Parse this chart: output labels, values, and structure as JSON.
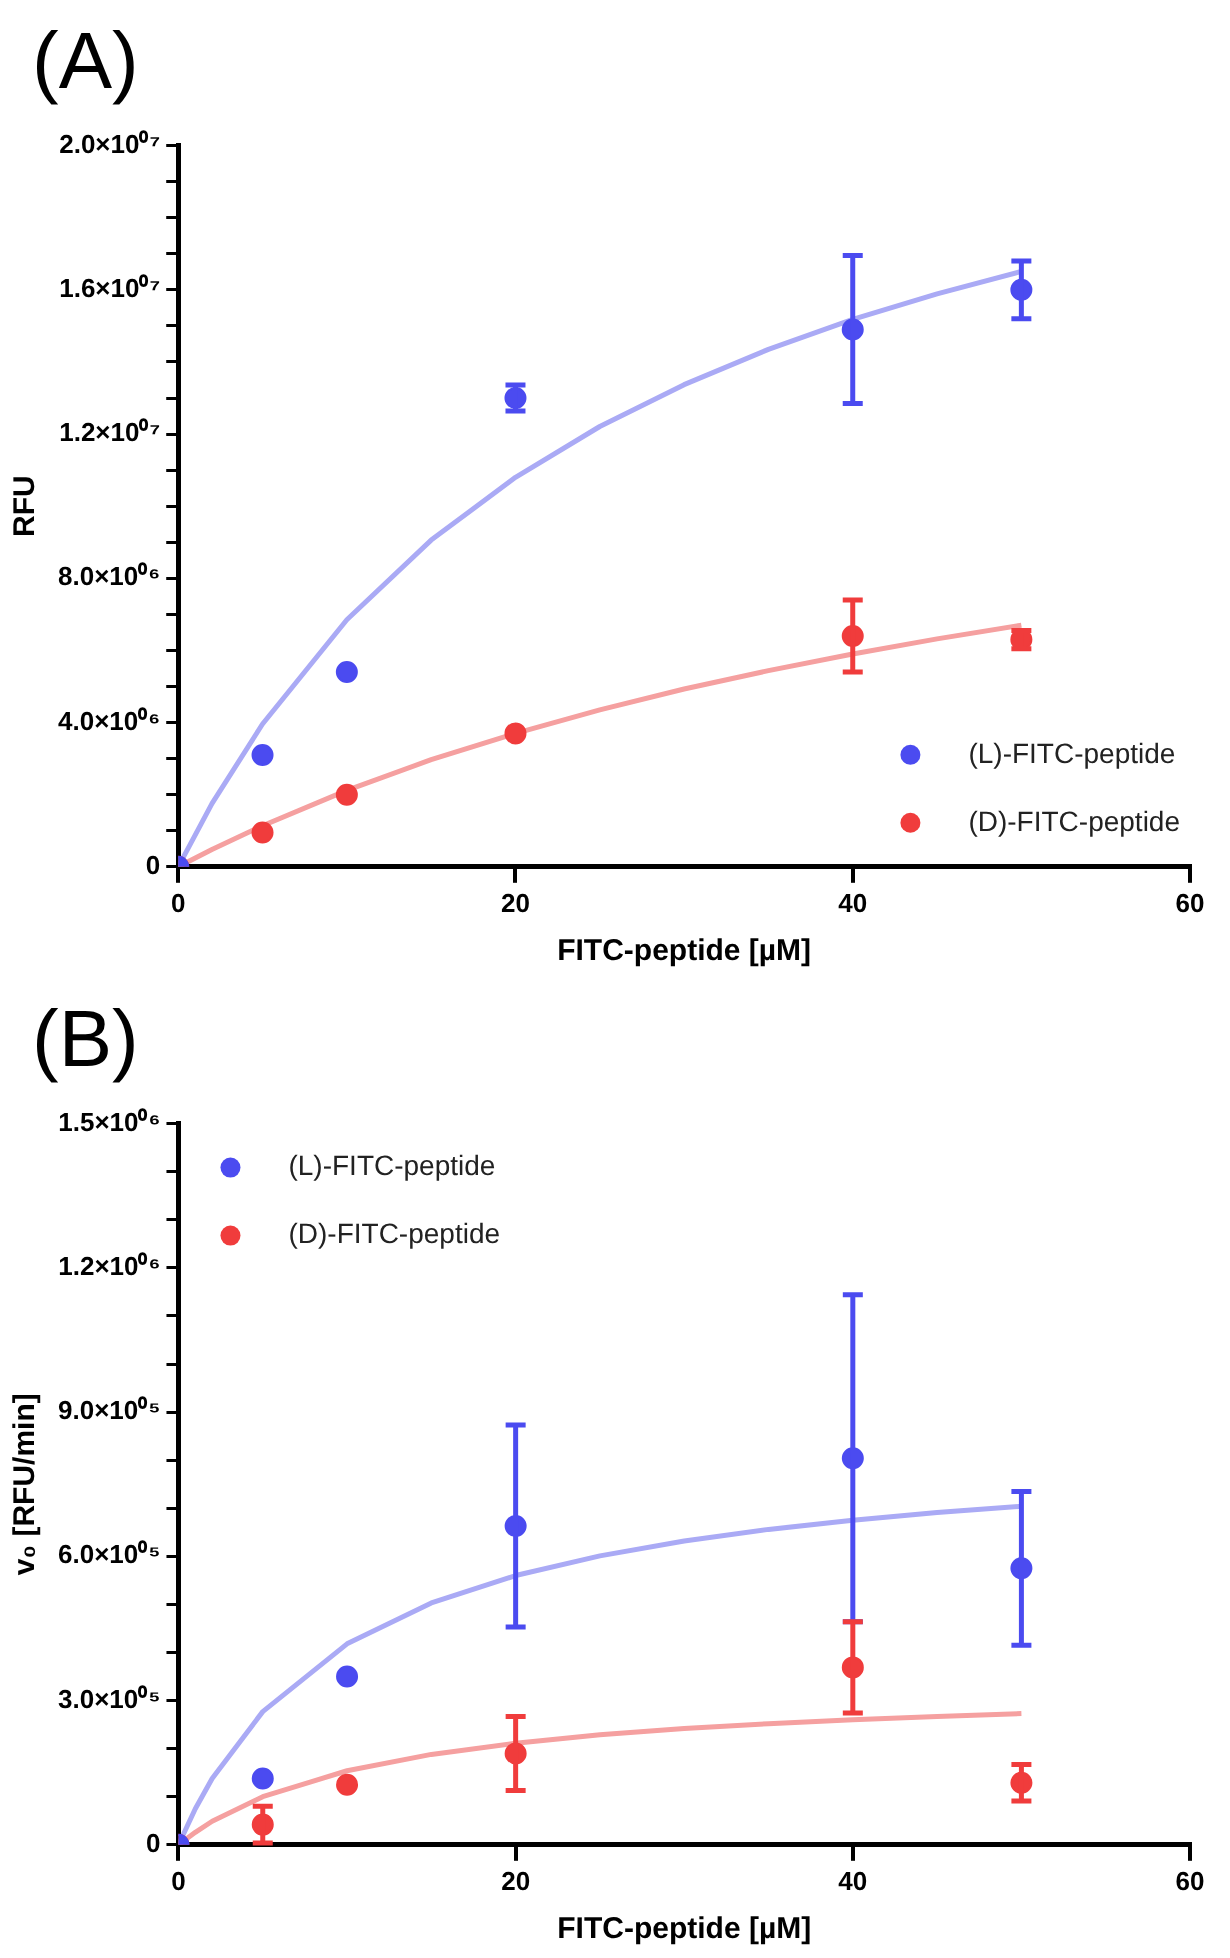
{
  "chart_data": [
    {
      "type": "scatter",
      "title": "(A)",
      "xlabel": "FITC-peptide [µM]",
      "ylabel": "RFU",
      "xlim": [
        0,
        60
      ],
      "xticks": [
        0,
        20,
        40,
        60
      ],
      "ylim": [
        0,
        20000000
      ],
      "yticks": [
        0,
        {
          "value": 1000000,
          "label": null
        },
        {
          "value": 2000000,
          "label": null
        },
        {
          "value": 3000000,
          "label": null
        },
        {
          "value": 4000000,
          "label": "4.0×10⁰⁶"
        },
        {
          "value": 5000000,
          "label": null
        },
        {
          "value": 6000000,
          "label": null
        },
        {
          "value": 7000000,
          "label": null
        },
        {
          "value": 8000000,
          "label": "8.0×10⁰⁶"
        },
        {
          "value": 9000000,
          "label": null
        },
        {
          "value": 10000000,
          "label": null
        },
        {
          "value": 11000000,
          "label": null
        },
        {
          "value": 12000000,
          "label": "1.2×10⁰⁷"
        },
        {
          "value": 13000000,
          "label": null
        },
        {
          "value": 14000000,
          "label": null
        },
        {
          "value": 15000000,
          "label": null
        },
        {
          "value": 16000000,
          "label": "1.6×10⁰⁷"
        },
        {
          "value": 17000000,
          "label": null
        },
        {
          "value": 18000000,
          "label": null
        },
        {
          "value": 19000000,
          "label": null
        },
        {
          "value": 20000000,
          "label": "2.0×10⁰⁷"
        }
      ],
      "grid": false,
      "legend": "bottom right",
      "marker": "circle",
      "series": [
        {
          "name": "(L)-FITC-peptide",
          "color": "#4b4bf0",
          "x": [
            0,
            5,
            10,
            20,
            40,
            50
          ],
          "values": [
            0,
            3100000,
            5400000,
            13000000,
            14900000,
            16000000
          ],
          "errors": [
            null,
            null,
            null,
            360000,
            2050000,
            800000
          ]
        },
        {
          "name": "(D)-FITC-peptide",
          "color": "#f03c3c",
          "x": [
            0,
            5,
            10,
            20,
            40,
            50
          ],
          "values": [
            0,
            950000,
            2000000,
            3700000,
            6400000,
            6300000
          ],
          "errors": [
            null,
            null,
            null,
            null,
            1000000,
            250000
          ]
        },
        {
          "type": "line",
          "marker": "none",
          "color": "#aaaaf5",
          "x": [
            0,
            2,
            5,
            10,
            15,
            20,
            25,
            30,
            35,
            40,
            45,
            50
          ],
          "values": [
            0,
            1750000,
            3960000,
            6850000,
            9060000,
            10800000,
            12210000,
            13370000,
            14350000,
            15180000,
            15890000,
            16510000
          ]
        },
        {
          "type": "line",
          "marker": "none",
          "color": "#f5a0a0",
          "x": [
            0,
            2,
            5,
            10,
            15,
            20,
            25,
            30,
            35,
            40,
            45,
            50
          ],
          "values": [
            0,
            480000,
            1140000,
            2120000,
            2970000,
            3700000,
            4350000,
            4930000,
            5440000,
            5900000,
            6320000,
            6700000
          ]
        }
      ]
    },
    {
      "type": "scatter",
      "title": "(B)",
      "xlabel": "FITC-peptide [µM]",
      "ylabel": "v₀ [RFU/min]",
      "xlim": [
        0,
        60
      ],
      "xticks": [
        0,
        20,
        40,
        60
      ],
      "ylim": [
        0,
        1500000
      ],
      "yticks": [
        0,
        {
          "value": 100000,
          "label": null
        },
        {
          "value": 200000,
          "label": null
        },
        {
          "value": 300000,
          "label": "3.0×10⁰⁵"
        },
        {
          "value": 400000,
          "label": null
        },
        {
          "value": 500000,
          "label": null
        },
        {
          "value": 600000,
          "label": "6.0×10⁰⁵"
        },
        {
          "value": 700000,
          "label": null
        },
        {
          "value": 800000,
          "label": null
        },
        {
          "value": 900000,
          "label": "9.0×10⁰⁵"
        },
        {
          "value": 1000000,
          "label": null
        },
        {
          "value": 1100000,
          "label": null
        },
        {
          "value": 1200000,
          "label": "1.2×10⁰⁶"
        },
        {
          "value": 1300000,
          "label": null
        },
        {
          "value": 1400000,
          "label": null
        },
        {
          "value": 1500000,
          "label": "1.5×10⁰⁶"
        }
      ],
      "grid": false,
      "legend": "top left",
      "marker": "circle",
      "series": [
        {
          "name": "(L)-FITC-peptide",
          "color": "#4b4bf0",
          "x": [
            0,
            5,
            10,
            20,
            40,
            50
          ],
          "values": [
            0,
            138000,
            350000,
            663000,
            804000,
            575000
          ],
          "errors": [
            null,
            null,
            null,
            210000,
            340000,
            160000
          ]
        },
        {
          "name": "(D)-FITC-peptide",
          "color": "#f03c3c",
          "x": [
            0,
            5,
            10,
            20,
            40,
            50
          ],
          "values": [
            0,
            42000,
            125000,
            190000,
            369000,
            129000
          ],
          "errors": [
            null,
            38000,
            null,
            77000,
            95000,
            38000
          ]
        },
        {
          "type": "line",
          "marker": "none",
          "color": "#aaaaf5",
          "x": [
            0,
            1,
            2,
            5,
            10,
            15,
            20,
            25,
            30,
            35,
            40,
            45,
            50
          ],
          "values": [
            0,
            75000,
            138000,
            277000,
            418000,
            503000,
            560000,
            601000,
            632000,
            656000,
            675000,
            691000,
            704000
          ]
        },
        {
          "type": "line",
          "marker": "none",
          "color": "#f5a0a0",
          "x": [
            0,
            1,
            2,
            5,
            10,
            15,
            20,
            25,
            30,
            35,
            40,
            45,
            50
          ],
          "values": [
            0,
            26000,
            49000,
            100000,
            154000,
            188000,
            211000,
            229000,
            242000,
            252000,
            260000,
            267000,
            273000
          ]
        }
      ]
    }
  ]
}
